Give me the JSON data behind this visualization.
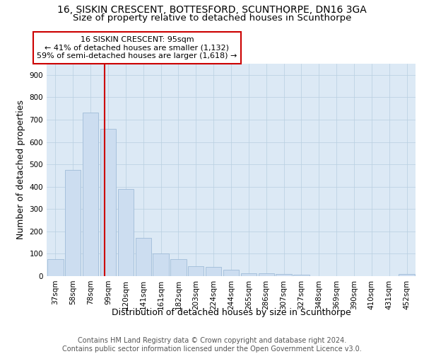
{
  "title": "16, SISKIN CRESCENT, BOTTESFORD, SCUNTHORPE, DN16 3GA",
  "subtitle": "Size of property relative to detached houses in Scunthorpe",
  "xlabel": "Distribution of detached houses by size in Scunthorpe",
  "ylabel": "Number of detached properties",
  "categories": [
    "37sqm",
    "58sqm",
    "78sqm",
    "99sqm",
    "120sqm",
    "141sqm",
    "161sqm",
    "182sqm",
    "203sqm",
    "224sqm",
    "244sqm",
    "265sqm",
    "286sqm",
    "307sqm",
    "327sqm",
    "348sqm",
    "369sqm",
    "390sqm",
    "410sqm",
    "431sqm",
    "452sqm"
  ],
  "values": [
    75,
    475,
    730,
    660,
    390,
    170,
    100,
    75,
    45,
    40,
    30,
    13,
    12,
    10,
    7,
    0,
    0,
    0,
    0,
    0,
    8
  ],
  "bar_color": "#ccddf0",
  "bar_edge_color": "#a0bcd8",
  "plot_bg_color": "#dce9f5",
  "background_color": "#ffffff",
  "grid_color": "#b8cfe0",
  "property_line_color": "#cc0000",
  "annotation_text": "16 SISKIN CRESCENT: 95sqm\n← 41% of detached houses are smaller (1,132)\n59% of semi-detached houses are larger (1,618) →",
  "annotation_box_color": "#ffffff",
  "annotation_box_edge": "#cc0000",
  "ylim": [
    0,
    950
  ],
  "yticks": [
    0,
    100,
    200,
    300,
    400,
    500,
    600,
    700,
    800,
    900
  ],
  "footer_line1": "Contains HM Land Registry data © Crown copyright and database right 2024.",
  "footer_line2": "Contains public sector information licensed under the Open Government Licence v3.0.",
  "title_fontsize": 10,
  "subtitle_fontsize": 9.5,
  "axis_label_fontsize": 9,
  "tick_fontsize": 7.5,
  "annotation_fontsize": 8,
  "footer_fontsize": 7
}
